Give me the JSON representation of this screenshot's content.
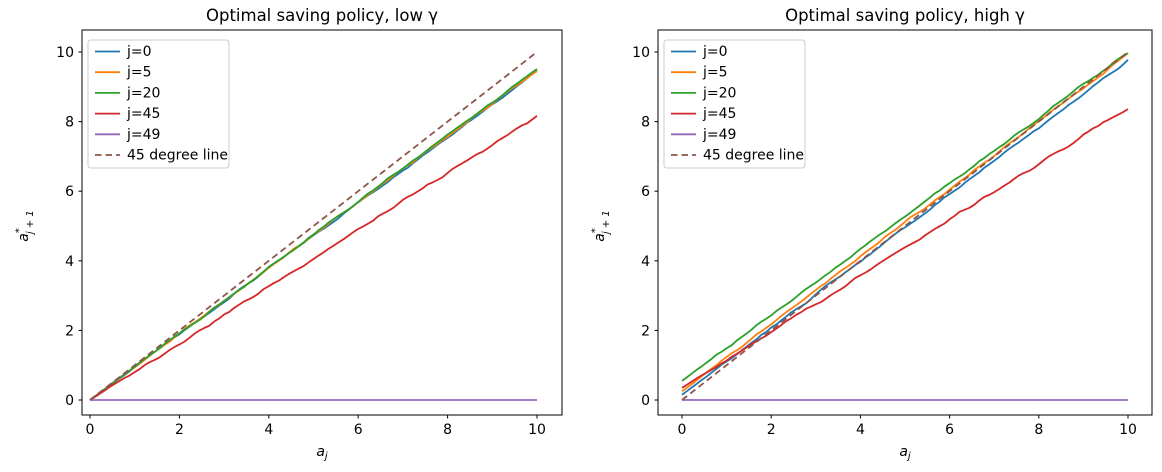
{
  "figure": {
    "background": "#ffffff",
    "text_color": "#000000",
    "frame_color": "#000000",
    "legend_border_color": "#cccccc",
    "legend_bg": "#ffffff"
  },
  "chart_data": [
    {
      "type": "line",
      "title": "Optimal saving policy, low γ",
      "xlabel": "a_j",
      "xlabel_parts": {
        "base": "a",
        "sub": "j"
      },
      "ylabel": "a*_(j+1)",
      "ylabel_parts": {
        "base": "a",
        "sup": "*",
        "sub": "j + 1"
      },
      "xlim": [
        -0.2,
        10.55
      ],
      "ylim": [
        -0.45,
        10.65
      ],
      "xticks": [
        0,
        2,
        4,
        6,
        8,
        10
      ],
      "yticks": [
        0,
        2,
        4,
        6,
        8,
        10
      ],
      "grid": false,
      "legend_position": "upper left",
      "x": [
        0,
        2,
        4,
        6,
        8,
        10
      ],
      "series": [
        {
          "name": "j=0",
          "color": "#1f77b4",
          "style": "solid",
          "jitter": 0.05,
          "y": [
            0,
            1.89,
            3.78,
            5.67,
            7.56,
            9.45
          ]
        },
        {
          "name": "j=5",
          "color": "#ff7f0e",
          "style": "solid",
          "jitter": 0.05,
          "y": [
            0,
            1.9,
            3.79,
            5.69,
            7.58,
            9.47
          ]
        },
        {
          "name": "j=20",
          "color": "#2ca02c",
          "style": "solid",
          "jitter": 0.05,
          "y": [
            0,
            1.9,
            3.8,
            5.7,
            7.6,
            9.5
          ]
        },
        {
          "name": "j=45",
          "color": "#d62728",
          "style": "solid",
          "jitter": 0.06,
          "y": [
            0,
            1.63,
            3.26,
            4.89,
            6.52,
            8.15
          ]
        },
        {
          "name": "j=49",
          "color": "#9467bd",
          "style": "solid",
          "jitter": 0,
          "y": [
            0,
            0,
            0,
            0,
            0,
            0
          ]
        },
        {
          "name": "45 degree line",
          "color": "#8c564b",
          "style": "dashed",
          "jitter": 0,
          "y": [
            0,
            2,
            4,
            6,
            8,
            10
          ]
        }
      ]
    },
    {
      "type": "line",
      "title": "Optimal saving policy, high γ",
      "xlabel": "a_j",
      "xlabel_parts": {
        "base": "a",
        "sub": "j"
      },
      "ylabel": "a*_(j+1)",
      "ylabel_parts": {
        "base": "a",
        "sup": "*",
        "sub": "j + 1"
      },
      "xlim": [
        -0.2,
        10.55
      ],
      "ylim": [
        -0.45,
        10.65
      ],
      "xticks": [
        0,
        2,
        4,
        6,
        8,
        10
      ],
      "yticks": [
        0,
        2,
        4,
        6,
        8,
        10
      ],
      "grid": false,
      "legend_position": "upper left",
      "x": [
        0,
        2,
        4,
        6,
        8,
        10
      ],
      "series": [
        {
          "name": "j=0",
          "color": "#1f77b4",
          "style": "solid",
          "jitter": 0.05,
          "y": [
            0.15,
            2.07,
            3.99,
            5.91,
            7.83,
            9.75
          ]
        },
        {
          "name": "j=5",
          "color": "#ff7f0e",
          "style": "solid",
          "jitter": 0.05,
          "y": [
            0.25,
            2.19,
            4.13,
            6.07,
            8.01,
            9.95
          ]
        },
        {
          "name": "j=20",
          "color": "#2ca02c",
          "style": "solid",
          "jitter": 0.05,
          "y": [
            0.55,
            2.44,
            4.33,
            6.22,
            8.11,
            10.0
          ]
        },
        {
          "name": "j=45",
          "color": "#d62728",
          "style": "solid",
          "jitter": 0.06,
          "y": [
            0.35,
            1.96,
            3.57,
            5.18,
            6.79,
            8.4
          ]
        },
        {
          "name": "j=49",
          "color": "#9467bd",
          "style": "solid",
          "jitter": 0,
          "y": [
            0,
            0,
            0,
            0,
            0,
            0
          ]
        },
        {
          "name": "45 degree line",
          "color": "#8c564b",
          "style": "dashed",
          "jitter": 0,
          "y": [
            0,
            2,
            4,
            6,
            8,
            10
          ]
        }
      ]
    }
  ]
}
